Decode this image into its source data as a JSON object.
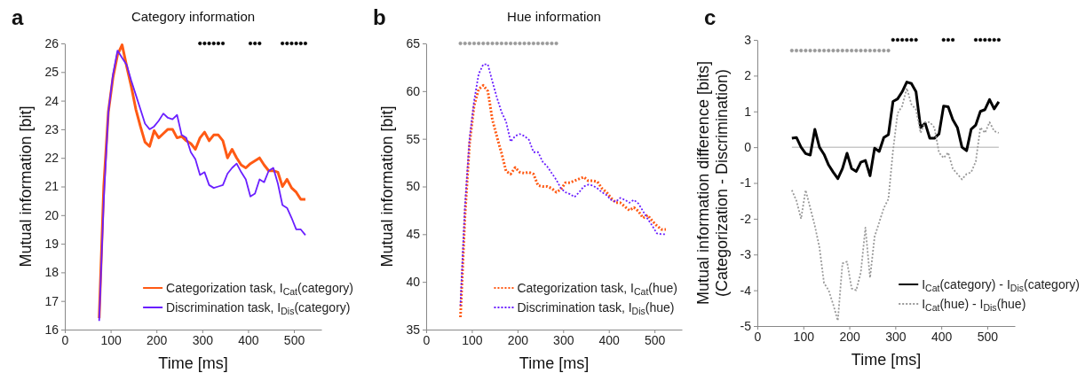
{
  "chart_data": [
    {
      "type": "line",
      "title": "Category information",
      "annotations": [
        "a"
      ],
      "xlabel": "Time [ms]",
      "ylabel": "Mutual information [bit]",
      "xlim": [
        0,
        560
      ],
      "xticks": [
        0,
        100,
        200,
        300,
        400,
        500
      ],
      "ylim": [
        16,
        26
      ],
      "yticks": [
        16,
        17,
        18,
        19,
        20,
        21,
        22,
        23,
        24,
        25,
        26
      ],
      "legend": "bottom right",
      "line_style": "solid",
      "x": [
        75,
        85,
        95,
        105,
        115,
        125,
        135,
        145,
        155,
        165,
        175,
        185,
        195,
        205,
        215,
        225,
        235,
        245,
        255,
        265,
        275,
        285,
        295,
        305,
        315,
        325,
        335,
        345,
        355,
        365,
        375,
        385,
        395,
        405,
        415,
        425,
        435,
        445,
        455,
        465,
        475,
        485,
        495,
        505,
        515,
        525
      ],
      "series": [
        {
          "name": "Categorization task, I$_{Cat}$(category)",
          "color": "#ff5a14",
          "values": [
            16.4,
            21.0,
            23.6,
            24.8,
            25.6,
            25.95,
            25.2,
            24.5,
            23.7,
            23.1,
            22.55,
            22.4,
            22.95,
            22.7,
            22.85,
            23.0,
            23.0,
            22.7,
            22.75,
            22.6,
            22.5,
            22.3,
            22.7,
            22.9,
            22.6,
            22.8,
            22.8,
            22.6,
            22.0,
            22.3,
            22.0,
            21.75,
            21.65,
            21.8,
            21.9,
            22.0,
            21.75,
            21.55,
            21.55,
            21.5,
            21.0,
            21.25,
            20.95,
            20.8,
            20.55,
            20.55
          ]
        },
        {
          "name": "Discrimination task, I$_{Dis}$(category)",
          "color": "#6a1fff",
          "values": [
            16.3,
            20.5,
            23.6,
            24.9,
            25.75,
            25.5,
            25.25,
            24.7,
            24.2,
            23.7,
            23.2,
            23.0,
            23.1,
            23.3,
            23.55,
            23.4,
            23.35,
            23.5,
            22.8,
            22.7,
            22.2,
            21.95,
            21.4,
            21.5,
            21.05,
            20.95,
            21.0,
            21.05,
            21.45,
            21.65,
            21.8,
            21.5,
            21.25,
            20.65,
            20.75,
            21.25,
            21.15,
            21.55,
            21.65,
            21.1,
            20.35,
            20.25,
            19.9,
            19.5,
            19.5,
            19.3
          ]
        },
        {
          "type": "scatter",
          "marker": "circle",
          "color": "#000000",
          "x": [
            295,
            305,
            315,
            325,
            335,
            345,
            405,
            415,
            425,
            475,
            485,
            495,
            505,
            515,
            525
          ],
          "values": [
            26,
            26,
            26,
            26,
            26,
            26,
            26,
            26,
            26,
            26,
            26,
            26,
            26,
            26,
            26
          ]
        }
      ]
    },
    {
      "type": "line",
      "title": "Hue information",
      "annotations": [
        "b"
      ],
      "xlabel": "Time [ms]",
      "ylabel": "Mutual information [bit]",
      "xlim": [
        0,
        560
      ],
      "xticks": [
        0,
        100,
        200,
        300,
        400,
        500
      ],
      "ylim": [
        35,
        65
      ],
      "yticks": [
        35,
        40,
        45,
        50,
        55,
        60,
        65
      ],
      "legend": "bottom right",
      "line_style": "dotted",
      "x": [
        75,
        85,
        95,
        105,
        115,
        125,
        135,
        145,
        155,
        165,
        175,
        185,
        195,
        205,
        215,
        225,
        235,
        245,
        255,
        265,
        275,
        285,
        295,
        305,
        315,
        325,
        335,
        345,
        355,
        365,
        375,
        385,
        395,
        405,
        415,
        425,
        435,
        445,
        455,
        465,
        475,
        485,
        495,
        505,
        515,
        525
      ],
      "series": [
        {
          "name": "Categorization task, I$_{Cat}$(hue)",
          "color": "#ff5a14",
          "values": [
            36.3,
            47,
            54.5,
            58.5,
            60.2,
            60.6,
            60.0,
            57.0,
            55.2,
            53.5,
            51.6,
            51.3,
            52.0,
            51.5,
            51.4,
            51.5,
            51.3,
            50.1,
            50.0,
            50.0,
            49.8,
            49.4,
            49.7,
            50.4,
            50.4,
            50.6,
            50.8,
            51.0,
            50.6,
            50.6,
            50.5,
            49.8,
            49.4,
            48.8,
            48.3,
            48.3,
            47.9,
            47.5,
            47.8,
            47.4,
            46.7,
            47.0,
            46.4,
            45.9,
            45.5,
            45.5
          ]
        },
        {
          "name": "Discrimination task, I$_{Dis}$(hue)",
          "color": "#6a1fff",
          "values": [
            37.5,
            48,
            55,
            59,
            61.8,
            62.8,
            62.8,
            61.0,
            59.3,
            57.8,
            56.8,
            54.7,
            55.3,
            55.5,
            55.3,
            54.9,
            53.6,
            53.6,
            52.6,
            52.1,
            51.4,
            50.7,
            49.8,
            49.4,
            49.2,
            48.9,
            49.4,
            50.0,
            50.2,
            50.1,
            49.8,
            49.4,
            49.1,
            48.6,
            48.4,
            48.8,
            48.6,
            48.3,
            48.6,
            48.2,
            47.4,
            46.6,
            45.9,
            45.1,
            45.0,
            45.0
          ]
        },
        {
          "type": "scatter",
          "marker": "circle",
          "color": "#999999",
          "x": [
            75,
            85,
            95,
            105,
            115,
            125,
            135,
            145,
            155,
            165,
            175,
            185,
            195,
            205,
            215,
            225,
            235,
            245,
            255,
            265,
            275,
            285
          ],
          "values": [
            65,
            65,
            65,
            65,
            65,
            65,
            65,
            65,
            65,
            65,
            65,
            65,
            65,
            65,
            65,
            65,
            65,
            65,
            65,
            65,
            65,
            65
          ]
        }
      ]
    },
    {
      "type": "line",
      "annotations": [
        "c"
      ],
      "xlabel": "Time [ms]",
      "ylabel": "Mutual information difference [bits]\n(Categorization - Discrimination)",
      "xlim": [
        0,
        560
      ],
      "xticks": [
        0,
        100,
        200,
        300,
        400,
        500
      ],
      "ylim": [
        -5,
        3
      ],
      "yticks": [
        -5,
        -4,
        -3,
        -2,
        -1,
        0,
        1,
        2,
        3
      ],
      "legend": "bottom right",
      "ref_lines": [
        {
          "axis": "y",
          "value": 0,
          "color": "#c8c8c8"
        }
      ],
      "x": [
        75,
        85,
        95,
        105,
        115,
        125,
        135,
        145,
        155,
        165,
        175,
        185,
        195,
        205,
        215,
        225,
        235,
        245,
        255,
        265,
        275,
        285,
        295,
        305,
        315,
        325,
        335,
        345,
        355,
        365,
        375,
        385,
        395,
        405,
        415,
        425,
        435,
        445,
        455,
        465,
        475,
        485,
        495,
        505,
        515,
        525
      ],
      "series": [
        {
          "name": "I$_{Cat}$(category) - I$_{Dis}$(category)",
          "color": "#000000",
          "line_style": "solid",
          "values": [
            0.25,
            0.27,
            0.0,
            -0.18,
            -0.22,
            0.5,
            0.0,
            -0.2,
            -0.5,
            -0.7,
            -0.88,
            -0.6,
            -0.17,
            -0.6,
            -0.68,
            -0.42,
            -0.37,
            -0.8,
            -0.03,
            -0.12,
            0.27,
            0.35,
            1.28,
            1.35,
            1.55,
            1.82,
            1.78,
            1.55,
            0.55,
            0.67,
            0.25,
            0.25,
            0.37,
            1.15,
            1.13,
            0.77,
            0.55,
            0.0,
            -0.1,
            0.5,
            0.62,
            1.0,
            1.05,
            1.33,
            1.07,
            1.27
          ]
        },
        {
          "name": "I$_{Cat}$(hue) - I$_{Dis}$(hue)",
          "color": "#999999",
          "line_style": "dotted",
          "values": [
            -1.2,
            -1.5,
            -2.0,
            -1.2,
            -1.7,
            -2.2,
            -2.8,
            -3.8,
            -4.0,
            -4.4,
            -4.85,
            -3.25,
            -3.2,
            -3.95,
            -4.0,
            -3.5,
            -2.25,
            -3.65,
            -2.5,
            -2.1,
            -1.7,
            -1.45,
            -0.1,
            0.95,
            1.15,
            1.65,
            1.2,
            1.05,
            0.4,
            0.7,
            0.7,
            0.55,
            -0.15,
            -0.3,
            -0.15,
            -0.6,
            -0.75,
            -0.9,
            -0.75,
            -0.7,
            -0.4,
            0.55,
            0.4,
            0.7,
            0.45,
            0.4
          ]
        },
        {
          "type": "scatter",
          "marker": "circle",
          "color": "#000000",
          "x": [
            295,
            305,
            315,
            325,
            335,
            345,
            405,
            415,
            425,
            475,
            485,
            495,
            505,
            515,
            525
          ],
          "values": [
            3,
            3,
            3,
            3,
            3,
            3,
            3,
            3,
            3,
            3,
            3,
            3,
            3,
            3,
            3
          ]
        },
        {
          "type": "scatter",
          "marker": "circle",
          "color": "#999999",
          "x": [
            75,
            85,
            95,
            105,
            115,
            125,
            135,
            145,
            155,
            165,
            175,
            185,
            195,
            205,
            215,
            225,
            235,
            245,
            255,
            265,
            275,
            285
          ],
          "values": [
            2.7,
            2.7,
            2.7,
            2.7,
            2.7,
            2.7,
            2.7,
            2.7,
            2.7,
            2.7,
            2.7,
            2.7,
            2.7,
            2.7,
            2.7,
            2.7,
            2.7,
            2.7,
            2.7,
            2.7,
            2.7,
            2.7
          ]
        }
      ]
    }
  ]
}
